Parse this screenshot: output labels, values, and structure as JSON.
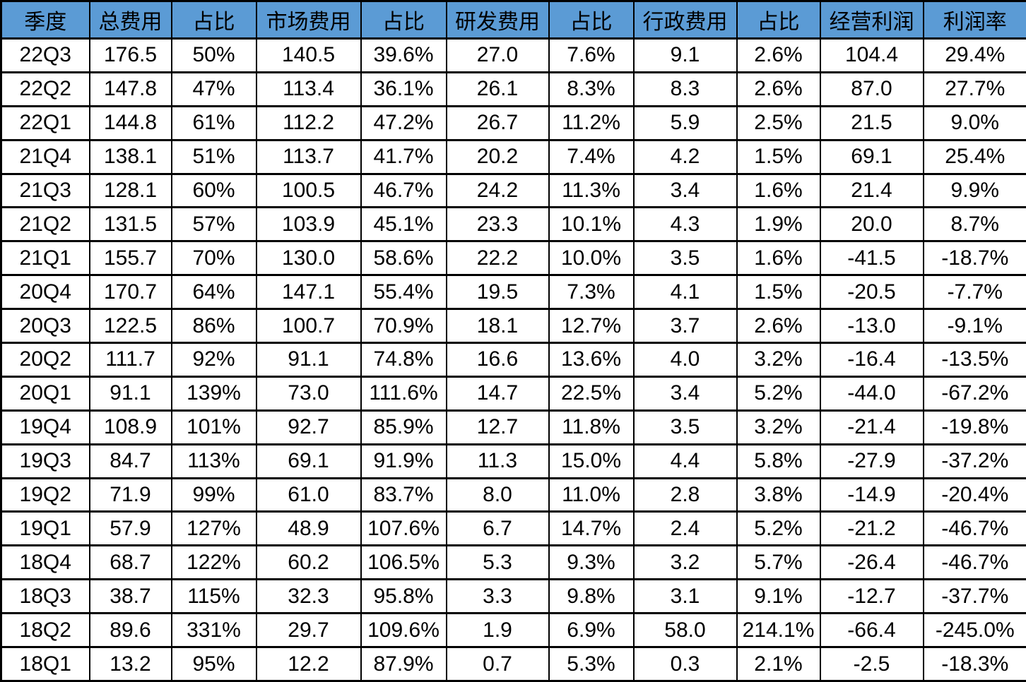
{
  "styles": {
    "header_bg": "#5B9BD5",
    "text_color": "#000000",
    "border_color": "#000000",
    "body_bg": "#FFFFFF"
  },
  "chart_data": {
    "type": "table",
    "title": "",
    "columns": [
      "季度",
      "总费用",
      "占比",
      "市场费用",
      "占比",
      "研发费用",
      "占比",
      "行政费用",
      "占比",
      "经营利润",
      "利润率"
    ],
    "rows": [
      [
        "22Q3",
        "176.5",
        "50%",
        "140.5",
        "39.6%",
        "27.0",
        "7.6%",
        "9.1",
        "2.6%",
        "104.4",
        "29.4%"
      ],
      [
        "22Q2",
        "147.8",
        "47%",
        "113.4",
        "36.1%",
        "26.1",
        "8.3%",
        "8.3",
        "2.6%",
        "87.0",
        "27.7%"
      ],
      [
        "22Q1",
        "144.8",
        "61%",
        "112.2",
        "47.2%",
        "26.7",
        "11.2%",
        "5.9",
        "2.5%",
        "21.5",
        "9.0%"
      ],
      [
        "21Q4",
        "138.1",
        "51%",
        "113.7",
        "41.7%",
        "20.2",
        "7.4%",
        "4.2",
        "1.5%",
        "69.1",
        "25.4%"
      ],
      [
        "21Q3",
        "128.1",
        "60%",
        "100.5",
        "46.7%",
        "24.2",
        "11.3%",
        "3.4",
        "1.6%",
        "21.4",
        "9.9%"
      ],
      [
        "21Q2",
        "131.5",
        "57%",
        "103.9",
        "45.1%",
        "23.3",
        "10.1%",
        "4.3",
        "1.9%",
        "20.0",
        "8.7%"
      ],
      [
        "21Q1",
        "155.7",
        "70%",
        "130.0",
        "58.6%",
        "22.2",
        "10.0%",
        "3.5",
        "1.6%",
        "-41.5",
        "-18.7%"
      ],
      [
        "20Q4",
        "170.7",
        "64%",
        "147.1",
        "55.4%",
        "19.5",
        "7.3%",
        "4.1",
        "1.5%",
        "-20.5",
        "-7.7%"
      ],
      [
        "20Q3",
        "122.5",
        "86%",
        "100.7",
        "70.9%",
        "18.1",
        "12.7%",
        "3.7",
        "2.6%",
        "-13.0",
        "-9.1%"
      ],
      [
        "20Q2",
        "111.7",
        "92%",
        "91.1",
        "74.8%",
        "16.6",
        "13.6%",
        "4.0",
        "3.2%",
        "-16.4",
        "-13.5%"
      ],
      [
        "20Q1",
        "91.1",
        "139%",
        "73.0",
        "111.6%",
        "14.7",
        "22.5%",
        "3.4",
        "5.2%",
        "-44.0",
        "-67.2%"
      ],
      [
        "19Q4",
        "108.9",
        "101%",
        "92.7",
        "85.9%",
        "12.7",
        "11.8%",
        "3.5",
        "3.2%",
        "-21.4",
        "-19.8%"
      ],
      [
        "19Q3",
        "84.7",
        "113%",
        "69.1",
        "91.9%",
        "11.3",
        "15.0%",
        "4.4",
        "5.8%",
        "-27.9",
        "-37.2%"
      ],
      [
        "19Q2",
        "71.9",
        "99%",
        "61.0",
        "83.7%",
        "8.0",
        "11.0%",
        "2.8",
        "3.8%",
        "-14.9",
        "-20.4%"
      ],
      [
        "19Q1",
        "57.9",
        "127%",
        "48.9",
        "107.6%",
        "6.7",
        "14.7%",
        "2.4",
        "5.2%",
        "-21.2",
        "-46.7%"
      ],
      [
        "18Q4",
        "68.7",
        "122%",
        "60.2",
        "106.5%",
        "5.3",
        "9.3%",
        "3.2",
        "5.7%",
        "-26.4",
        "-46.7%"
      ],
      [
        "18Q3",
        "38.7",
        "115%",
        "32.3",
        "95.8%",
        "3.3",
        "9.8%",
        "3.1",
        "9.1%",
        "-12.7",
        "-37.7%"
      ],
      [
        "18Q2",
        "89.6",
        "331%",
        "29.7",
        "109.6%",
        "1.9",
        "6.9%",
        "58.0",
        "214.1%",
        "-66.4",
        "-245.0%"
      ],
      [
        "18Q1",
        "13.2",
        "95%",
        "12.2",
        "87.9%",
        "0.7",
        "5.3%",
        "0.3",
        "2.1%",
        "-2.5",
        "-18.3%"
      ]
    ]
  }
}
